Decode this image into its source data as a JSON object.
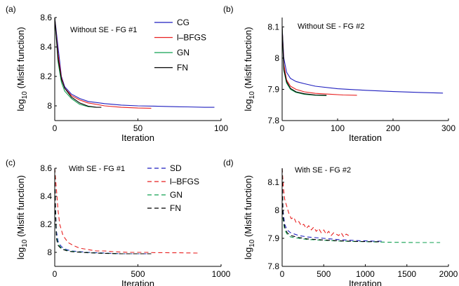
{
  "chart_data": [
    {
      "type": "line",
      "panel_label": "(a)",
      "annotation": "Without SE - FG #1",
      "xlabel": "Iteration",
      "ylabel": "log10 (Misfit function)",
      "xlim": [
        0,
        100
      ],
      "ylim": [
        7.9,
        8.6
      ],
      "xticks": [
        0,
        50,
        100
      ],
      "yticks": [
        8,
        8.2,
        8.4,
        8.6
      ],
      "legend_position": "top-right",
      "line_style": "solid",
      "series": [
        {
          "name": "CG",
          "color": "#1f1fbf",
          "x": [
            0,
            2,
            4,
            6,
            10,
            15,
            20,
            30,
            40,
            50,
            60,
            70,
            80,
            90,
            96
          ],
          "y": [
            8.6,
            8.4,
            8.2,
            8.13,
            8.08,
            8.05,
            8.03,
            8.015,
            8.005,
            8.0,
            7.998,
            7.995,
            7.993,
            7.99,
            7.99
          ]
        },
        {
          "name": "l–BFGS",
          "color": "#e82020",
          "x": [
            0,
            2,
            4,
            6,
            10,
            15,
            20,
            30,
            40,
            50,
            58
          ],
          "y": [
            8.6,
            8.35,
            8.19,
            8.12,
            8.07,
            8.04,
            8.02,
            8.0,
            7.99,
            7.985,
            7.984
          ]
        },
        {
          "name": "GN",
          "color": "#12a050",
          "x": [
            0,
            2,
            4,
            6,
            10,
            15,
            20,
            25
          ],
          "y": [
            8.6,
            8.3,
            8.16,
            8.1,
            8.05,
            8.01,
            7.995,
            7.99
          ]
        },
        {
          "name": "FN",
          "color": "#000000",
          "x": [
            0,
            2,
            4,
            6,
            10,
            15,
            20,
            25,
            28
          ],
          "y": [
            8.6,
            8.32,
            8.18,
            8.12,
            8.06,
            8.02,
            7.998,
            7.99,
            7.99
          ]
        }
      ]
    },
    {
      "type": "line",
      "panel_label": "(b)",
      "annotation": "Without SE - FG #2",
      "xlabel": "Iteration",
      "ylabel": "log10 (Misfit function)",
      "xlim": [
        0,
        300
      ],
      "ylim": [
        7.8,
        8.13
      ],
      "xticks": [
        0,
        100,
        200,
        300
      ],
      "yticks": [
        7.8,
        7.9,
        8,
        8.1
      ],
      "legend_position": "none",
      "line_style": "solid",
      "series": [
        {
          "name": "CG",
          "color": "#1f1fbf",
          "x": [
            0,
            3,
            8,
            15,
            25,
            40,
            60,
            100,
            150,
            200,
            250,
            290
          ],
          "y": [
            8.1,
            8.0,
            7.955,
            7.935,
            7.925,
            7.918,
            7.91,
            7.902,
            7.897,
            7.893,
            7.89,
            7.888
          ]
        },
        {
          "name": "l–BFGS",
          "color": "#e82020",
          "x": [
            0,
            3,
            8,
            15,
            25,
            40,
            60,
            90,
            110,
            135
          ],
          "y": [
            8.1,
            7.98,
            7.93,
            7.91,
            7.9,
            7.892,
            7.887,
            7.884,
            7.882,
            7.881
          ]
        },
        {
          "name": "GN",
          "color": "#12a050",
          "x": [
            0,
            3,
            8,
            15,
            25,
            40,
            60,
            80
          ],
          "y": [
            8.1,
            7.96,
            7.92,
            7.9,
            7.89,
            7.884,
            7.881,
            7.88
          ]
        },
        {
          "name": "FN",
          "color": "#000000",
          "x": [
            0,
            3,
            8,
            15,
            25,
            40,
            60,
            80
          ],
          "y": [
            8.1,
            7.965,
            7.925,
            7.903,
            7.892,
            7.886,
            7.882,
            7.881
          ]
        }
      ]
    },
    {
      "type": "line",
      "panel_label": "(c)",
      "annotation": "With SE - FG #1",
      "xlabel": "Iteration",
      "ylabel": "log10 (Misfit function)",
      "xlim": [
        0,
        1000
      ],
      "ylim": [
        7.9,
        8.6
      ],
      "xticks": [
        0,
        500,
        1000
      ],
      "yticks": [
        8,
        8.2,
        8.4,
        8.6
      ],
      "legend_position": "top-right",
      "line_style": "dashed",
      "series": [
        {
          "name": "SD",
          "color": "#1f1fbf",
          "x": [
            0,
            5,
            10,
            20,
            40,
            70,
            100,
            200,
            300,
            400,
            500,
            550
          ],
          "y": [
            8.6,
            8.3,
            8.15,
            8.08,
            8.04,
            8.02,
            8.01,
            8.0,
            7.995,
            7.99,
            7.99,
            7.99
          ]
        },
        {
          "name": "l–BFGS",
          "color": "#e82020",
          "x": [
            0,
            10,
            20,
            30,
            50,
            80,
            110,
            150,
            200,
            250,
            300,
            350,
            400,
            450,
            500,
            550,
            600,
            650,
            700,
            750,
            800,
            860
          ],
          "y": [
            8.6,
            8.45,
            8.3,
            8.2,
            8.12,
            8.07,
            8.05,
            8.03,
            8.02,
            8.01,
            8.01,
            8.005,
            8.002,
            8.0,
            8.0,
            8.0,
            7.998,
            7.998,
            7.997,
            7.997,
            7.996,
            7.995
          ]
        },
        {
          "name": "GN",
          "color": "#12a050",
          "x": [
            0,
            5,
            10,
            20,
            40,
            70,
            100,
            200,
            300,
            400,
            500,
            520
          ],
          "y": [
            8.6,
            8.28,
            8.12,
            8.06,
            8.03,
            8.015,
            8.007,
            7.998,
            7.993,
            7.99,
            7.99,
            7.99
          ]
        },
        {
          "name": "FN",
          "color": "#000000",
          "x": [
            0,
            5,
            10,
            20,
            40,
            70,
            100,
            200,
            300,
            400,
            500,
            580
          ],
          "y": [
            8.6,
            8.26,
            8.1,
            8.05,
            8.025,
            8.012,
            8.005,
            7.997,
            7.993,
            7.99,
            7.99,
            7.99
          ]
        }
      ]
    },
    {
      "type": "line",
      "panel_label": "(d)",
      "annotation": "With SE - FG #2",
      "xlabel": "Iteration",
      "ylabel": "log10 (Misfit function)",
      "xlim": [
        0,
        2000
      ],
      "ylim": [
        7.8,
        8.15
      ],
      "xticks": [
        0,
        500,
        1000,
        1500,
        2000
      ],
      "yticks": [
        7.8,
        7.9,
        8,
        8.1
      ],
      "legend_position": "none",
      "line_style": "dashed",
      "series": [
        {
          "name": "SD",
          "color": "#1f1fbf",
          "x": [
            0,
            10,
            30,
            60,
            100,
            200,
            300,
            500,
            700,
            900,
            1100,
            1200
          ],
          "y": [
            8.15,
            8.0,
            7.95,
            7.93,
            7.92,
            7.91,
            7.905,
            7.9,
            7.895,
            7.892,
            7.89,
            7.89
          ]
        },
        {
          "name": "l–BFGS",
          "color": "#e82020",
          "x": [
            0,
            15,
            30,
            50,
            80,
            110,
            140,
            170,
            200,
            230,
            260,
            290,
            320,
            350,
            380,
            410,
            440,
            470,
            500,
            530,
            560,
            590,
            620,
            650,
            680,
            710,
            740,
            770,
            800
          ],
          "y": [
            8.15,
            8.08,
            8.04,
            8.02,
            7.99,
            7.97,
            7.975,
            7.955,
            7.96,
            7.945,
            7.95,
            7.935,
            7.945,
            7.93,
            7.94,
            7.925,
            7.935,
            7.92,
            7.93,
            7.915,
            7.925,
            7.91,
            7.92,
            7.915,
            7.91,
            7.92,
            7.905,
            7.915,
            7.91
          ]
        },
        {
          "name": "GN",
          "color": "#12a050",
          "x": [
            0,
            10,
            30,
            60,
            100,
            200,
            300,
            500,
            700,
            1000,
            1300,
            1600,
            1900
          ],
          "y": [
            8.15,
            7.97,
            7.93,
            7.915,
            7.905,
            7.9,
            7.896,
            7.893,
            7.89,
            7.888,
            7.886,
            7.885,
            7.885
          ]
        },
        {
          "name": "FN",
          "color": "#000000",
          "x": [
            0,
            10,
            30,
            60,
            100,
            200,
            300,
            500,
            700,
            900,
            1100,
            1200
          ],
          "y": [
            8.15,
            7.98,
            7.94,
            7.92,
            7.91,
            7.903,
            7.898,
            7.894,
            7.891,
            7.889,
            7.888,
            7.888
          ]
        }
      ]
    }
  ]
}
